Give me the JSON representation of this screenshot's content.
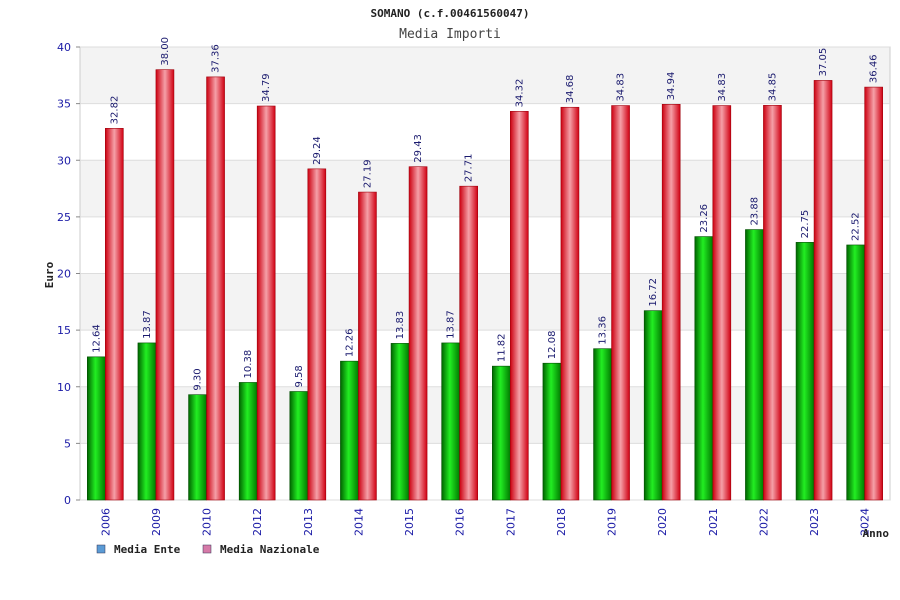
{
  "title": "SOMANO (c.f.00461560047)",
  "subtitle": "Media Importi",
  "chart_data": {
    "type": "bar",
    "categories": [
      "2006",
      "2009",
      "2010",
      "2012",
      "2013",
      "2014",
      "2015",
      "2016",
      "2017",
      "2018",
      "2019",
      "2020",
      "2021",
      "2022",
      "2023",
      "2024"
    ],
    "series": [
      {
        "name": "Media Ente",
        "values": [
          12.64,
          13.87,
          9.3,
          10.38,
          9.58,
          12.26,
          13.83,
          13.87,
          11.82,
          12.08,
          13.36,
          16.72,
          23.26,
          23.88,
          22.75,
          22.52
        ],
        "labels": [
          "12.64",
          "13.87",
          "9.30",
          "10.38",
          "9.58",
          "12.26",
          "13.83",
          "13.87",
          "11.82",
          "12.08",
          "13.36",
          "16.72",
          "23.26",
          "23.88",
          "22.75",
          "22.52"
        ]
      },
      {
        "name": "Media Nazionale",
        "values": [
          32.82,
          38.0,
          37.36,
          34.79,
          29.24,
          27.19,
          29.43,
          27.71,
          34.32,
          34.68,
          34.83,
          34.94,
          34.83,
          34.85,
          37.05,
          36.46
        ],
        "labels": [
          "32.82",
          "38.00",
          "37.36",
          "34.79",
          "29.24",
          "27.19",
          "29.43",
          "27.71",
          "34.32",
          "34.68",
          "34.83",
          "34.94",
          "34.83",
          "34.85",
          "37.05",
          "36.46"
        ]
      }
    ],
    "xlabel": "Anno",
    "ylabel": "Euro",
    "ylim": [
      0,
      40
    ],
    "yticks": [
      0,
      5,
      10,
      15,
      20,
      25,
      30,
      35,
      40
    ],
    "grid": true,
    "legend_position": "bottom-left",
    "colors": {
      "ente": "#00b000",
      "nazionale": "#e8101a",
      "legend_ente": "#5b9bd5",
      "legend_nazionale": "#d67aa8",
      "tick_text": "#1a1aa6"
    }
  }
}
